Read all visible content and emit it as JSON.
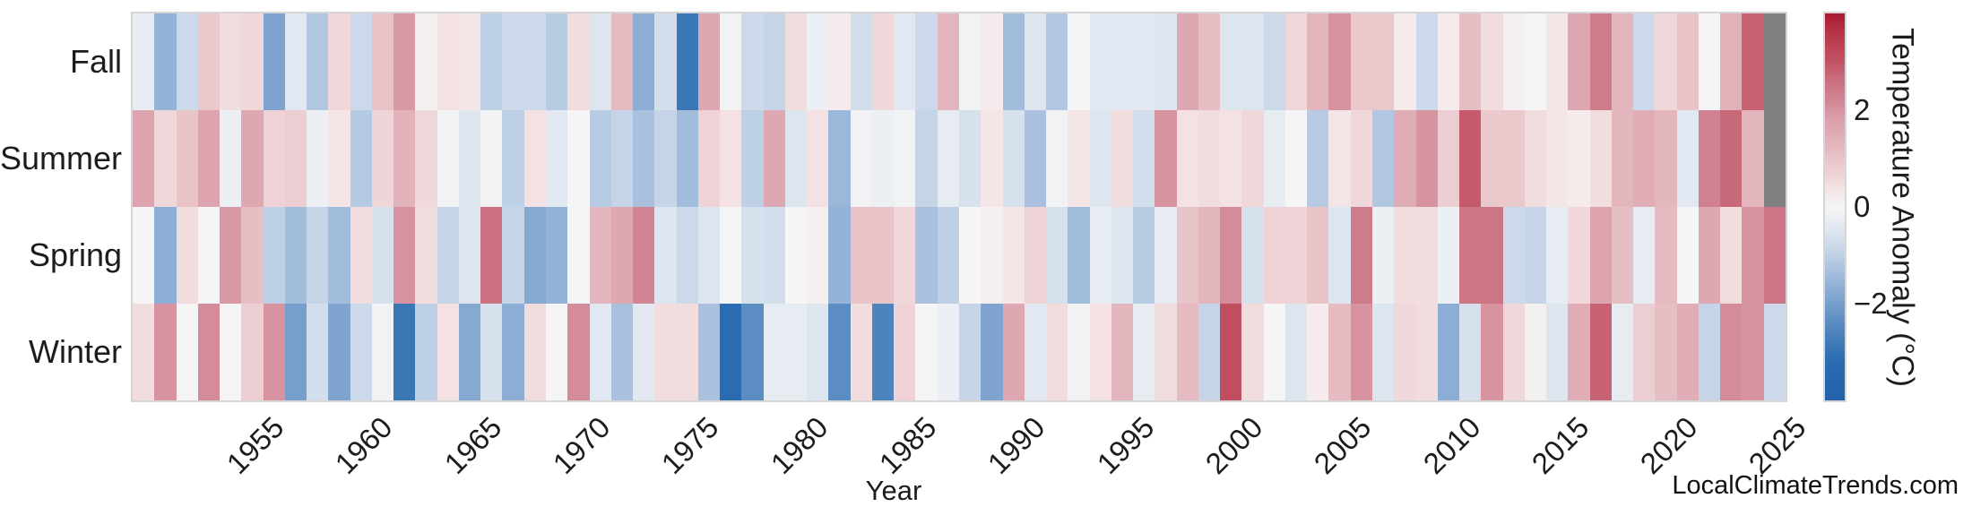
{
  "watermark": "LocalClimateTrends.com",
  "chart_data": {
    "type": "heatmap",
    "title": "",
    "xlabel": "Year",
    "rows": [
      "Fall",
      "Summer",
      "Spring",
      "Winter"
    ],
    "x_start": 1950,
    "x_end": 2025,
    "xticks": [
      "1955",
      "1960",
      "1965",
      "1970",
      "1975",
      "1980",
      "1985",
      "1990",
      "1995",
      "2000",
      "2005",
      "2010",
      "2015",
      "2020",
      "2025"
    ],
    "grid": false,
    "missing_color": "#808080",
    "colorbar": {
      "label": "Temperature Anomaly (°C)",
      "vmin": -4,
      "vmax": 4,
      "ticks": [
        {
          "label": "2",
          "value": 2
        },
        {
          "label": "0",
          "value": 0
        },
        {
          "label": "−2",
          "value": -2
        }
      ]
    },
    "colormap_stops": [
      [
        -4.0,
        "#2362ab"
      ],
      [
        -3.2,
        "#2b6bb1"
      ],
      [
        -2.9,
        "#3a77b5"
      ],
      [
        -2.4,
        "#5b8cc2"
      ],
      [
        -1.8,
        "#85a9d1"
      ],
      [
        -1.4,
        "#a2bcdc"
      ],
      [
        -1.0,
        "#bed0e5"
      ],
      [
        -0.7,
        "#d2deec"
      ],
      [
        -0.35,
        "#e5eaf2"
      ],
      [
        0.0,
        "#f6f5f5"
      ],
      [
        0.35,
        "#f4e4e5"
      ],
      [
        0.7,
        "#eed2d5"
      ],
      [
        1.0,
        "#e8c4c9"
      ],
      [
        1.4,
        "#e1b0b9"
      ],
      [
        1.8,
        "#dba0ab"
      ],
      [
        2.2,
        "#d28595"
      ],
      [
        2.6,
        "#ca7080"
      ],
      [
        3.0,
        "#c25364"
      ],
      [
        3.5,
        "#b93a4d"
      ],
      [
        4.0,
        "#a91a31"
      ]
    ],
    "series": [
      {
        "name": "Fall",
        "values": [
          -0.3,
          -1.6,
          -0.8,
          0.9,
          0.5,
          0.6,
          -1.9,
          -0.4,
          -1.2,
          0.6,
          -0.8,
          1.0,
          1.9,
          0.1,
          0.4,
          0.3,
          -1.0,
          -0.8,
          -0.8,
          -1.1,
          0.5,
          -0.5,
          1.2,
          -1.7,
          -0.7,
          -2.9,
          1.6,
          -0.1,
          -0.8,
          -0.9,
          0.5,
          -0.2,
          0.2,
          -0.7,
          0.6,
          -0.4,
          -0.8,
          1.3,
          -0.1,
          0.2,
          -1.4,
          -0.5,
          -1.2,
          0.0,
          -0.4,
          -0.4,
          -0.4,
          -0.5,
          1.6,
          1.1,
          -0.5,
          -0.5,
          -0.8,
          0.6,
          1.3,
          2.0,
          0.9,
          0.9,
          0.2,
          -0.8,
          0.2,
          1.1,
          0.5,
          0.1,
          0.0,
          0.3,
          1.6,
          2.4,
          1.3,
          -0.8,
          0.6,
          1.0,
          0.0,
          1.4,
          2.8,
          null
        ]
      },
      {
        "name": "Summer",
        "values": [
          1.7,
          0.6,
          1.0,
          1.7,
          -0.2,
          1.6,
          0.7,
          0.8,
          -0.2,
          0.3,
          -1.15,
          0.65,
          1.35,
          0.6,
          -0.1,
          -0.5,
          -0.1,
          -1.0,
          0.4,
          -0.4,
          0.0,
          -1.1,
          -0.9,
          -1.3,
          -0.9,
          -1.4,
          0.7,
          0.4,
          -1.0,
          1.6,
          -0.5,
          0.4,
          -1.5,
          -0.1,
          -0.2,
          -0.1,
          -0.9,
          -0.3,
          -0.6,
          0.3,
          -0.6,
          -1.3,
          -0.1,
          0.3,
          -0.5,
          0.5,
          -0.7,
          2.0,
          0.4,
          0.5,
          0.4,
          0.6,
          -0.3,
          0.0,
          -1.1,
          0.3,
          0.6,
          -1.2,
          1.5,
          2.0,
          0.8,
          2.9,
          0.9,
          0.9,
          0.5,
          0.3,
          0.2,
          0.5,
          1.3,
          1.5,
          1.3,
          -0.4,
          2.3,
          2.7,
          1.3,
          null
        ]
      },
      {
        "name": "Spring",
        "values": [
          0.0,
          -1.7,
          0.5,
          0.0,
          1.9,
          1.1,
          -1.0,
          -1.4,
          -0.9,
          -1.4,
          0.5,
          -0.6,
          2.0,
          0.5,
          -0.9,
          -0.5,
          2.6,
          -0.9,
          -1.8,
          -1.6,
          0.0,
          1.3,
          1.6,
          2.2,
          -0.5,
          -0.8,
          -0.5,
          0.0,
          -0.6,
          -0.7,
          0.0,
          0.1,
          -1.6,
          1.0,
          1.0,
          0.6,
          -1.3,
          -1.0,
          0.0,
          0.1,
          0.3,
          0.7,
          -0.6,
          -1.4,
          -0.3,
          -0.5,
          -1.1,
          -0.3,
          1.0,
          1.3,
          2.1,
          -0.6,
          0.7,
          0.7,
          1.0,
          -0.5,
          2.4,
          -0.2,
          0.5,
          0.5,
          -0.2,
          2.5,
          2.5,
          -0.8,
          -0.9,
          -0.3,
          0.6,
          1.7,
          1.1,
          -0.3,
          1.2,
          0.0,
          1.6,
          0.5,
          2.0,
          2.5
        ]
      },
      {
        "name": "Winter",
        "values": [
          0.5,
          2.0,
          0.0,
          2.1,
          0.0,
          0.8,
          2.0,
          -2.0,
          -0.7,
          -1.9,
          -0.8,
          -0.1,
          -2.9,
          -1.0,
          0.4,
          -1.8,
          -0.6,
          -1.7,
          0.5,
          0.0,
          2.1,
          -0.4,
          -1.3,
          -0.4,
          0.5,
          0.5,
          -1.3,
          -3.2,
          -2.4,
          -0.3,
          -0.3,
          -0.5,
          -2.4,
          0.5,
          -2.6,
          0.7,
          0.0,
          -0.2,
          -0.9,
          -1.9,
          1.6,
          -0.4,
          0.5,
          -0.1,
          0.4,
          1.3,
          -0.3,
          0.5,
          1.2,
          -0.9,
          3.1,
          0.5,
          0.0,
          -0.5,
          0.2,
          1.2,
          2.0,
          -0.5,
          0.6,
          0.5,
          -1.7,
          -0.6,
          2.0,
          0.6,
          0.1,
          -0.5,
          1.5,
          2.8,
          -0.3,
          0.8,
          1.1,
          1.5,
          -0.9,
          2.1,
          2.0,
          -0.8
        ]
      }
    ]
  }
}
